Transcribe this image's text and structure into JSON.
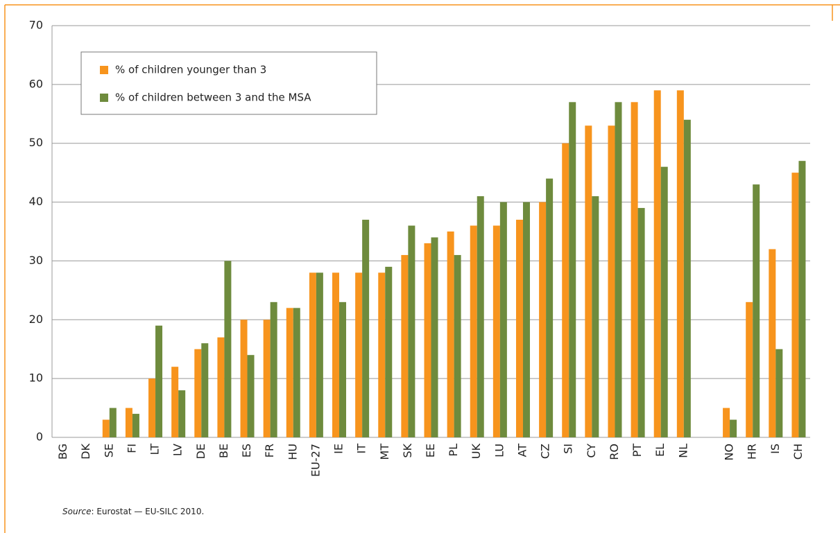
{
  "chart_data": {
    "type": "bar",
    "categories": [
      "BG",
      "DK",
      "SE",
      "FI",
      "LT",
      "LV",
      "DE",
      "BE",
      "ES",
      "FR",
      "HU",
      "EU-27",
      "IE",
      "IT",
      "MT",
      "SK",
      "EE",
      "PL",
      "UK",
      "LU",
      "AT",
      "CZ",
      "SI",
      "CY",
      "RO",
      "PT",
      "EL",
      "NL",
      null,
      "NO",
      "HR",
      "IS",
      "CH"
    ],
    "series": [
      {
        "name": "% of children younger than 3",
        "color": "#f7941d",
        "values": [
          null,
          null,
          3,
          5,
          10,
          12,
          15,
          17,
          20,
          20,
          22,
          28,
          28,
          28,
          28,
          31,
          33,
          35,
          36,
          36,
          37,
          40,
          50,
          53,
          53,
          57,
          59,
          59,
          null,
          5,
          23,
          32,
          45
        ]
      },
      {
        "name": "% of children between 3 and the MSA",
        "color": "#6e8b3d",
        "values": [
          null,
          null,
          5,
          4,
          19,
          8,
          16,
          30,
          14,
          23,
          22,
          28,
          23,
          37,
          29,
          36,
          34,
          31,
          41,
          40,
          40,
          44,
          57,
          41,
          57,
          39,
          46,
          54,
          null,
          3,
          43,
          15,
          47
        ]
      }
    ],
    "ylim": [
      0,
      70
    ],
    "yticks": [
      0,
      10,
      20,
      30,
      40,
      50,
      60,
      70
    ],
    "grid": true,
    "legend": "top-left",
    "source_label": "Source",
    "source_text": ": Eurostat — EU-SILC 2010."
  }
}
